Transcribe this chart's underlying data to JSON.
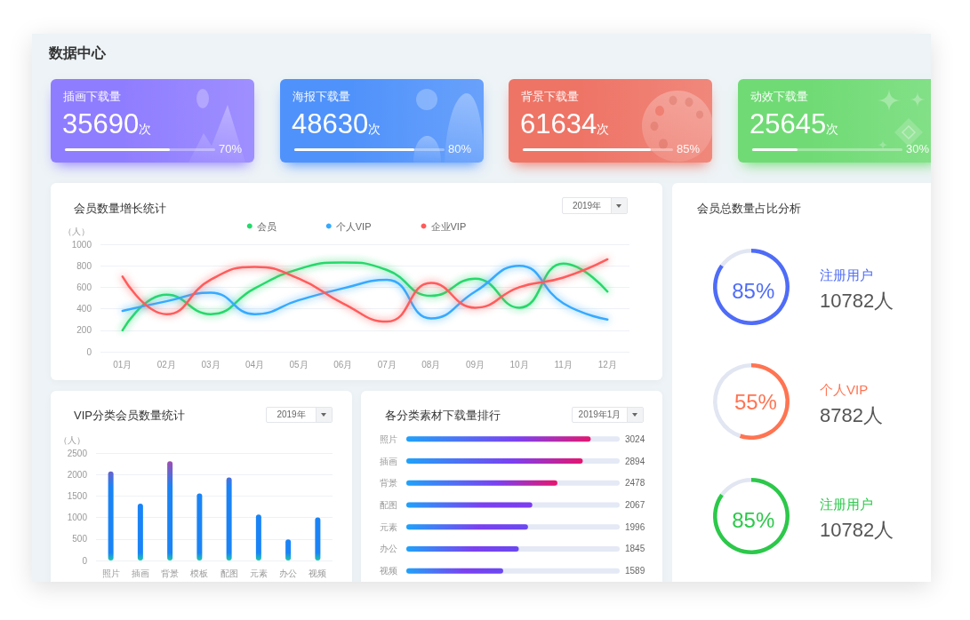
{
  "chart_data": [
    {
      "type": "other",
      "title": "数据中心"
    },
    {
      "type": "other",
      "title": "插画下载量",
      "annotations": [
        "35690次"
      ],
      "values": [
        70
      ],
      "value_labels": [
        "70%"
      ],
      "color": "#8f7dff"
    },
    {
      "type": "other",
      "title": "海报下载量",
      "annotations": [
        "48630次"
      ],
      "values": [
        80
      ],
      "value_labels": [
        "80%"
      ],
      "color": "#5092fb"
    },
    {
      "type": "other",
      "title": "背景下载量",
      "annotations": [
        "61634次"
      ],
      "values": [
        85
      ],
      "value_labels": [
        "85%"
      ],
      "color": "#ee7466"
    },
    {
      "type": "other",
      "title": "动效下载量",
      "annotations": [
        "25645次"
      ],
      "values": [
        30
      ],
      "value_labels": [
        "30%"
      ],
      "color": "#70db75"
    },
    {
      "type": "line",
      "title": "会员数量增长统计",
      "ylabel": "（人）",
      "categories": [
        "01月",
        "02月",
        "03月",
        "04月",
        "05月",
        "06月",
        "07月",
        "08月",
        "09月",
        "10月",
        "11月",
        "12月"
      ],
      "series": [
        {
          "name": "会员",
          "color": "#26d96b",
          "values": [
            200,
            530,
            350,
            590,
            770,
            830,
            760,
            520,
            680,
            410,
            820,
            560
          ]
        },
        {
          "name": "个人VIP",
          "color": "#35aaff",
          "values": [
            380,
            470,
            550,
            350,
            480,
            590,
            670,
            310,
            560,
            800,
            450,
            300
          ]
        },
        {
          "name": "企业VIP",
          "color": "#ff5b5b",
          "values": [
            700,
            350,
            670,
            790,
            680,
            450,
            280,
            640,
            410,
            600,
            690,
            860
          ]
        }
      ],
      "ylim": [
        0,
        1000
      ],
      "yticks": [
        0,
        200,
        400,
        600,
        800,
        1000
      ],
      "grid": "y",
      "legend": "top",
      "marker": "none",
      "line_style": "solid",
      "annotations": [
        "2019年"
      ]
    },
    {
      "type": "bar",
      "title": "VIP分类会员数量统计",
      "ylabel": "（人）",
      "categories": [
        "照片",
        "插画",
        "背景",
        "模板",
        "配图",
        "元素",
        "办公",
        "视频"
      ],
      "values": [
        2070,
        1320,
        2310,
        1560,
        1930,
        1070,
        490,
        1000
      ],
      "color": "#1a84f6",
      "ylim": [
        0,
        2500
      ],
      "yticks": [
        0,
        500,
        1000,
        1500,
        2000,
        2500
      ],
      "grid": "y",
      "annotations": [
        "2019年"
      ]
    },
    {
      "type": "bar",
      "orientation": "horizontal",
      "title": "各分类素材下载量排行",
      "categories": [
        "照片",
        "插画",
        "背景",
        "配图",
        "元素",
        "办公",
        "视频"
      ],
      "values": [
        3024,
        2894,
        2478,
        2067,
        1996,
        1845,
        1589
      ],
      "colors": [
        "#e3176f",
        "#e4156f",
        "#e8156c",
        "#7d3cf0",
        "#6a48f2",
        "#6a48f2",
        "#6a48f2"
      ],
      "data_labels": true,
      "tick_labels": "y",
      "annotations": [
        "2019年1月"
      ]
    },
    {
      "type": "donut",
      "title": "会员总数量占比分析",
      "categories": [
        "注册用户",
        null
      ],
      "values": [
        85,
        15
      ],
      "colors": [
        "#4f6cf7",
        "#e1e6f2"
      ],
      "value_labels": [
        "85%",
        null
      ],
      "annotations": [
        "10782人"
      ]
    },
    {
      "type": "donut",
      "categories": [
        "个人VIP",
        null
      ],
      "values": [
        55,
        45
      ],
      "colors": [
        "#ff7452",
        "#e1e6f2"
      ],
      "value_labels": [
        "55%",
        null
      ],
      "annotations": [
        "8782人"
      ]
    },
    {
      "type": "donut",
      "categories": [
        "注册用户",
        null
      ],
      "values": [
        85,
        15
      ],
      "colors": [
        "#2cc84a",
        "#e1e6f2"
      ],
      "value_labels": [
        "85%",
        null
      ],
      "annotations": [
        "10782人"
      ]
    }
  ]
}
